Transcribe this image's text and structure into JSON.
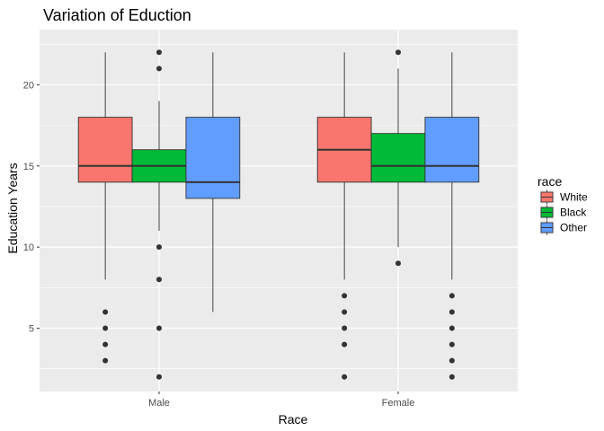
{
  "chart_data": {
    "type": "boxplot",
    "title": "Variation of Eduction",
    "xlabel": "Race",
    "ylabel": "Education Years",
    "categories": [
      "Male",
      "Female"
    ],
    "ylim": [
      1.1,
      23.4
    ],
    "y_ticks": [
      5,
      10,
      15,
      20
    ],
    "grid": true,
    "legend": {
      "title": "race",
      "position": "right",
      "entries": [
        "White",
        "Black",
        "Other"
      ]
    },
    "series": [
      {
        "name": "White",
        "color": "#F8766D",
        "boxes": [
          {
            "category": "Male",
            "min": 8,
            "q1": 14,
            "median": 15,
            "q3": 18,
            "max": 22,
            "outliers": [
              6,
              5,
              4,
              3
            ]
          },
          {
            "category": "Female",
            "min": 8,
            "q1": 14,
            "median": 16,
            "q3": 18,
            "max": 22,
            "outliers": [
              7,
              6,
              5,
              4,
              2
            ]
          }
        ]
      },
      {
        "name": "Black",
        "color": "#00BA38",
        "boxes": [
          {
            "category": "Male",
            "min": 11,
            "q1": 14,
            "median": 15,
            "q3": 16,
            "max": 19,
            "outliers": [
              22,
              21,
              10,
              8,
              5,
              2
            ]
          },
          {
            "category": "Female",
            "min": 10,
            "q1": 14,
            "median": 15,
            "q3": 17,
            "max": 21,
            "outliers": [
              22,
              9
            ]
          }
        ]
      },
      {
        "name": "Other",
        "color": "#619CFF",
        "boxes": [
          {
            "category": "Male",
            "min": 6,
            "q1": 13,
            "median": 14,
            "q3": 18,
            "max": 22,
            "outliers": []
          },
          {
            "category": "Female",
            "min": 8,
            "q1": 14,
            "median": 15,
            "q3": 18,
            "max": 22,
            "outliers": [
              7,
              6,
              5,
              4,
              3,
              2
            ]
          }
        ]
      }
    ]
  }
}
